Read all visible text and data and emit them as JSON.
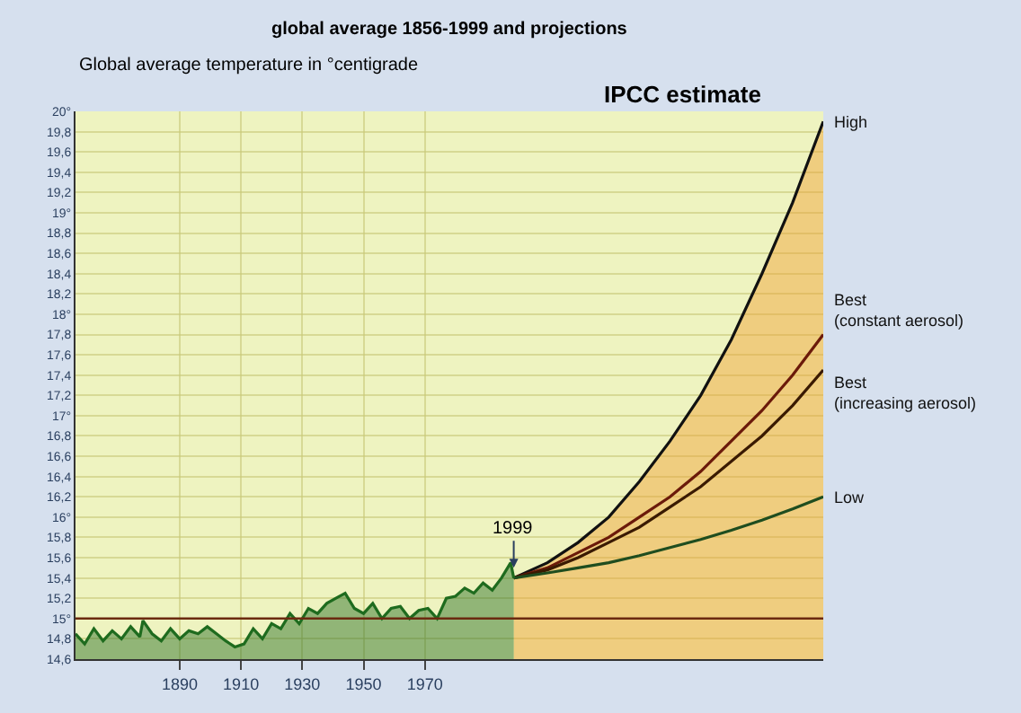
{
  "chart_data": {
    "type": "line",
    "subtitle": "global average 1856-1999 and projections",
    "ylabel": "Global average temperature in °centigrade",
    "annotations": [
      {
        "text": "1999",
        "x": 1999,
        "y": 15.5
      },
      "IPCC estimate"
    ],
    "xlim": [
      1856,
      2100
    ],
    "xticks": [
      1890,
      1910,
      1930,
      1950,
      1970
    ],
    "ylim": [
      14.6,
      20
    ],
    "yticks": [
      {
        "value": 14.6,
        "label": "14,6"
      },
      {
        "value": 14.8,
        "label": "14,8"
      },
      {
        "value": 15,
        "label": "15°"
      },
      {
        "value": 15.2,
        "label": "15,2"
      },
      {
        "value": 15.4,
        "label": "15,4"
      },
      {
        "value": 15.6,
        "label": "15,6"
      },
      {
        "value": 15.8,
        "label": "15,8"
      },
      {
        "value": 16,
        "label": "16°"
      },
      {
        "value": 16.2,
        "label": "16,2"
      },
      {
        "value": 16.4,
        "label": "16,4"
      },
      {
        "value": 16.6,
        "label": "16,6"
      },
      {
        "value": 16.8,
        "label": "16,8"
      },
      {
        "value": 17,
        "label": "17°"
      },
      {
        "value": 17.2,
        "label": "17,2"
      },
      {
        "value": 17.4,
        "label": "17,4"
      },
      {
        "value": 17.6,
        "label": "17,6"
      },
      {
        "value": 17.8,
        "label": "17,8"
      },
      {
        "value": 18,
        "label": "18°"
      },
      {
        "value": 18.2,
        "label": "18,2"
      },
      {
        "value": 18.4,
        "label": "18,4"
      },
      {
        "value": 18.6,
        "label": "18,6"
      },
      {
        "value": 18.8,
        "label": "18,8"
      },
      {
        "value": 19,
        "label": "19°"
      },
      {
        "value": 19.2,
        "label": "19,2"
      },
      {
        "value": 19.4,
        "label": "19,4"
      },
      {
        "value": 19.6,
        "label": "19,6"
      },
      {
        "value": 19.8,
        "label": "19,8"
      },
      {
        "value": 20,
        "label": "20°"
      }
    ],
    "grid": true,
    "legend": false,
    "marker": "none",
    "line_style": "solid",
    "ref_lines": [
      {
        "axis": "y",
        "value": 15,
        "label": null,
        "color": "#6b2a10"
      }
    ],
    "series": [
      {
        "type": "area",
        "color": "#f0a030",
        "x": [
          1999,
          2010,
          2020,
          2030,
          2040,
          2050,
          2060,
          2070,
          2080,
          2090,
          2100
        ],
        "values": [
          15.4,
          15.55,
          15.75,
          16.0,
          16.35,
          16.75,
          17.2,
          17.75,
          18.4,
          19.1,
          19.9
        ],
        "name": "High"
      },
      {
        "color": "#6b1a0a",
        "x": [
          1999,
          2010,
          2020,
          2030,
          2040,
          2050,
          2060,
          2070,
          2080,
          2090,
          2100
        ],
        "values": [
          15.4,
          15.5,
          15.65,
          15.8,
          16.0,
          16.2,
          16.45,
          16.75,
          17.05,
          17.4,
          17.8
        ],
        "name": "Best\n(constant aerosol)"
      },
      {
        "color": "#3a1a00",
        "x": [
          1999,
          2010,
          2020,
          2030,
          2040,
          2050,
          2060,
          2070,
          2080,
          2090,
          2100
        ],
        "values": [
          15.4,
          15.48,
          15.6,
          15.75,
          15.9,
          16.1,
          16.3,
          16.55,
          16.8,
          17.1,
          17.45
        ],
        "name": "Best\n(increasing aerosol)"
      },
      {
        "color": "#1f4d1f",
        "x": [
          1999,
          2010,
          2020,
          2030,
          2040,
          2050,
          2060,
          2070,
          2080,
          2090,
          2100
        ],
        "values": [
          15.4,
          15.45,
          15.5,
          15.55,
          15.62,
          15.7,
          15.78,
          15.87,
          15.97,
          16.08,
          16.2
        ],
        "name": "Low"
      },
      {
        "type": "area",
        "color": "#1e6b1e",
        "x": [
          1856,
          1859,
          1862,
          1865,
          1868,
          1871,
          1874,
          1877,
          1878,
          1881,
          1884,
          1887,
          1890,
          1893,
          1896,
          1899,
          1902,
          1905,
          1908,
          1911,
          1914,
          1917,
          1920,
          1923,
          1926,
          1929,
          1932,
          1935,
          1938,
          1941,
          1944,
          1947,
          1950,
          1953,
          1956,
          1959,
          1962,
          1965,
          1968,
          1971,
          1974,
          1977,
          1980,
          1983,
          1986,
          1989,
          1992,
          1995,
          1998,
          1999
        ],
        "values": [
          14.85,
          14.75,
          14.9,
          14.78,
          14.88,
          14.8,
          14.92,
          14.82,
          14.98,
          14.85,
          14.78,
          14.9,
          14.8,
          14.88,
          14.85,
          14.92,
          14.85,
          14.78,
          14.72,
          14.75,
          14.9,
          14.8,
          14.95,
          14.9,
          15.05,
          14.95,
          15.1,
          15.05,
          15.15,
          15.2,
          15.25,
          15.1,
          15.05,
          15.15,
          15.0,
          15.1,
          15.12,
          15.0,
          15.08,
          15.1,
          15.0,
          15.2,
          15.22,
          15.3,
          15.25,
          15.35,
          15.28,
          15.4,
          15.55,
          15.4
        ]
      }
    ]
  }
}
